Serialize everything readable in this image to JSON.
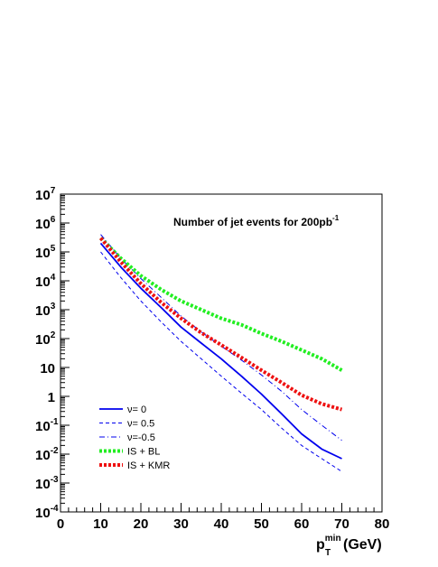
{
  "chart_data": {
    "type": "line",
    "title": {
      "main": "Number of jet events for 200pb",
      "sup": "-1"
    },
    "xlabel": {
      "main": "p",
      "sup": "min",
      "sub": "T",
      "unit": "(GeV)"
    },
    "ylabel": "",
    "xlim": [
      0,
      80
    ],
    "ylim": [
      0.0001,
      10000000
    ],
    "yscale": "log",
    "grid": false,
    "legend_position": "bottom-left",
    "x_ticks": [
      {
        "v": 0,
        "label": "0"
      },
      {
        "v": 10,
        "label": "10"
      },
      {
        "v": 20,
        "label": "20"
      },
      {
        "v": 30,
        "label": "30"
      },
      {
        "v": 40,
        "label": "40"
      },
      {
        "v": 50,
        "label": "50"
      },
      {
        "v": 60,
        "label": "60"
      },
      {
        "v": 70,
        "label": "70"
      },
      {
        "v": 80,
        "label": "80"
      }
    ],
    "y_ticks": [
      {
        "exp": 7,
        "base": "10",
        "sup": "7"
      },
      {
        "exp": 6,
        "base": "10",
        "sup": "6"
      },
      {
        "exp": 5,
        "base": "10",
        "sup": "5"
      },
      {
        "exp": 4,
        "base": "10",
        "sup": "4"
      },
      {
        "exp": 3,
        "base": "10",
        "sup": "3"
      },
      {
        "exp": 2,
        "base": "10",
        "sup": "2"
      },
      {
        "exp": 1,
        "base": "10",
        "sup": ""
      },
      {
        "exp": 0,
        "base": "1",
        "sup": ""
      },
      {
        "exp": -1,
        "base": "10",
        "sup": "-1"
      },
      {
        "exp": -2,
        "base": "10",
        "sup": "-2"
      },
      {
        "exp": -3,
        "base": "10",
        "sup": "-3"
      },
      {
        "exp": -4,
        "base": "10",
        "sup": "-4"
      }
    ],
    "series": [
      {
        "name": "ν= 0",
        "color": "#0000ee",
        "style": "solid",
        "x": [
          10,
          15,
          20,
          25,
          30,
          35,
          40,
          45,
          50,
          55,
          60,
          65,
          70
        ],
        "y": [
          200000,
          30000,
          5500,
          1200,
          250,
          70,
          20,
          5,
          1.2,
          0.25,
          0.05,
          0.015,
          0.007
        ]
      },
      {
        "name": "ν= 0.5",
        "color": "#0000ee",
        "style": "dashed",
        "x": [
          10,
          15,
          20,
          25,
          30,
          35,
          40,
          45,
          50,
          55,
          60,
          65,
          70
        ],
        "y": [
          100000,
          13000,
          2000,
          380,
          80,
          20,
          5,
          1.3,
          0.35,
          0.08,
          0.02,
          0.007,
          0.0025
        ]
      },
      {
        "name": "ν=-0.5",
        "color": "#0000ee",
        "style": "dashdot",
        "x": [
          10,
          15,
          20,
          25,
          30,
          35,
          40,
          45,
          50,
          55,
          60,
          65,
          70
        ],
        "y": [
          400000,
          60000,
          12000,
          2700,
          600,
          170,
          55,
          18,
          5.5,
          1.5,
          0.35,
          0.1,
          0.03
        ]
      },
      {
        "name": "IS + BL",
        "color": "#22ee22",
        "style": "dotted",
        "x": [
          10,
          15,
          20,
          25,
          30,
          35,
          40,
          45,
          50,
          55,
          60,
          65,
          70
        ],
        "y": [
          300000,
          60000,
          15000,
          5000,
          2000,
          1000,
          500,
          300,
          150,
          80,
          40,
          20,
          8
        ]
      },
      {
        "name": "IS + KMR",
        "color": "#ee1111",
        "style": "dotted",
        "x": [
          10,
          15,
          20,
          25,
          30,
          35,
          40,
          45,
          50,
          55,
          60,
          65,
          70
        ],
        "y": [
          300000,
          45000,
          8000,
          1800,
          500,
          160,
          60,
          22,
          8,
          3,
          1.1,
          0.55,
          0.35
        ]
      }
    ]
  }
}
